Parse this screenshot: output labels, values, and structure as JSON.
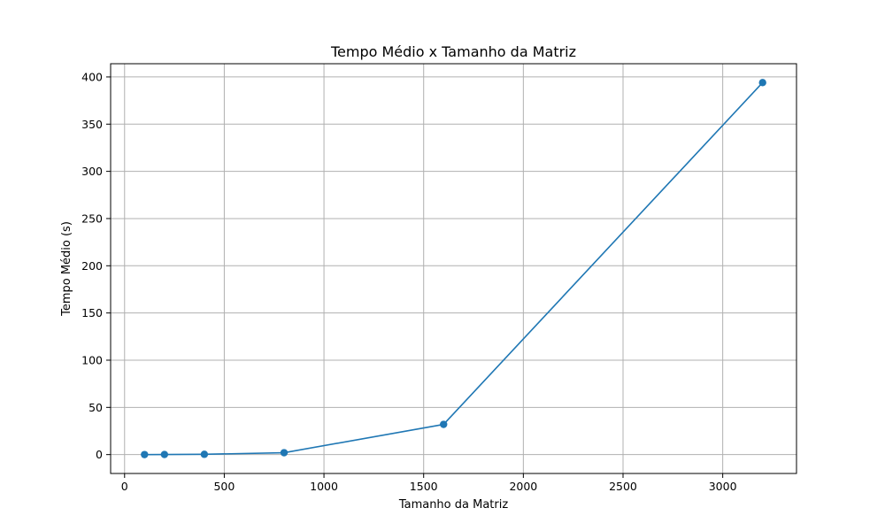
{
  "colors": {
    "series": "#1f77b4",
    "grid": "#b0b0b0",
    "axes": "#000000",
    "background": "#ffffff"
  },
  "chart_data": {
    "type": "line",
    "title": "Tempo Médio x Tamanho da Matriz",
    "xlabel": "Tamanho da Matriz",
    "ylabel": "Tempo Médio (s)",
    "xlim": [
      -70,
      3370
    ],
    "ylim": [
      -20,
      414
    ],
    "xticks": [
      0,
      500,
      1000,
      1500,
      2000,
      2500,
      3000
    ],
    "yticks": [
      0,
      50,
      100,
      150,
      200,
      250,
      300,
      350,
      400
    ],
    "xtick_labels": [
      "0",
      "500",
      "1000",
      "1500",
      "2000",
      "2500",
      "3000"
    ],
    "ytick_labels": [
      "0",
      "50",
      "100",
      "150",
      "200",
      "250",
      "300",
      "350",
      "400"
    ],
    "grid": true,
    "marker": "circle",
    "series": [
      {
        "x": [
          100,
          200,
          400,
          800,
          1600,
          3200
        ],
        "values": [
          0.02,
          0.08,
          0.3,
          2.0,
          32.0,
          394.0
        ]
      }
    ]
  }
}
